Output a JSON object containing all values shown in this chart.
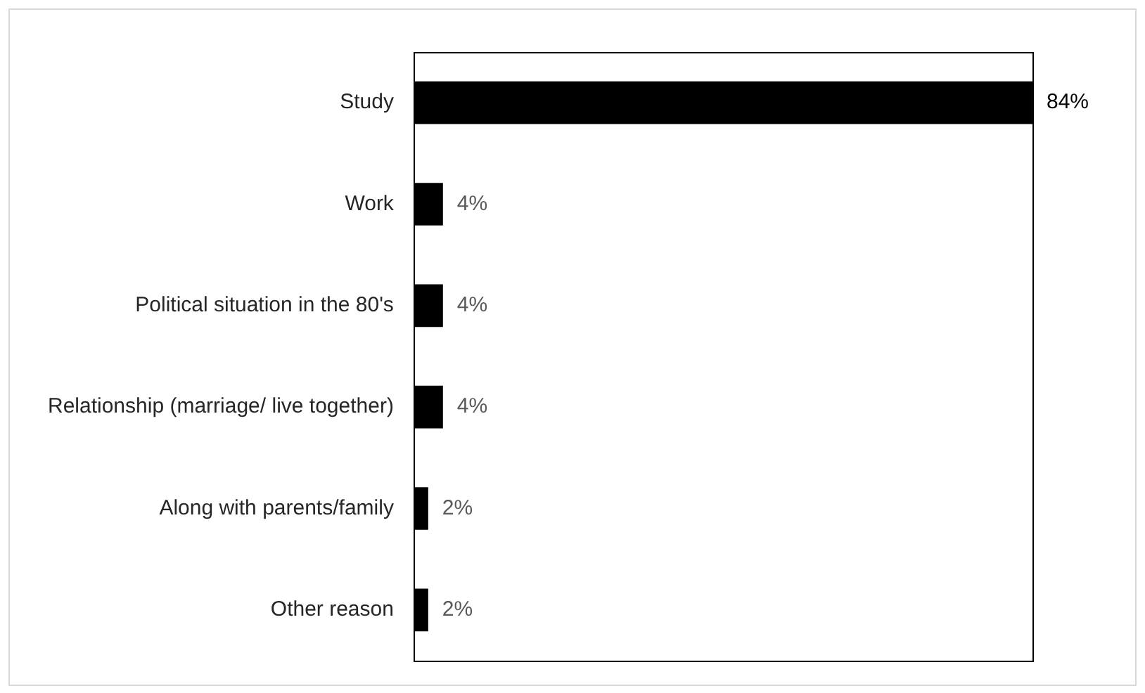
{
  "chart_data": {
    "type": "bar",
    "orientation": "horizontal",
    "categories": [
      "Study",
      "Work",
      "Political situation in the 80's",
      "Relationship (marriage/ live together)",
      "Along with parents/family",
      "Other reason"
    ],
    "values": [
      84,
      4,
      4,
      4,
      2,
      2
    ],
    "color": "#000000",
    "value_labels": [
      "84%",
      "4%",
      "4%",
      "4%",
      "2%",
      "2%"
    ],
    "xlim": [
      0,
      84
    ],
    "tick_labels": "y",
    "grid": false,
    "legend": false
  }
}
